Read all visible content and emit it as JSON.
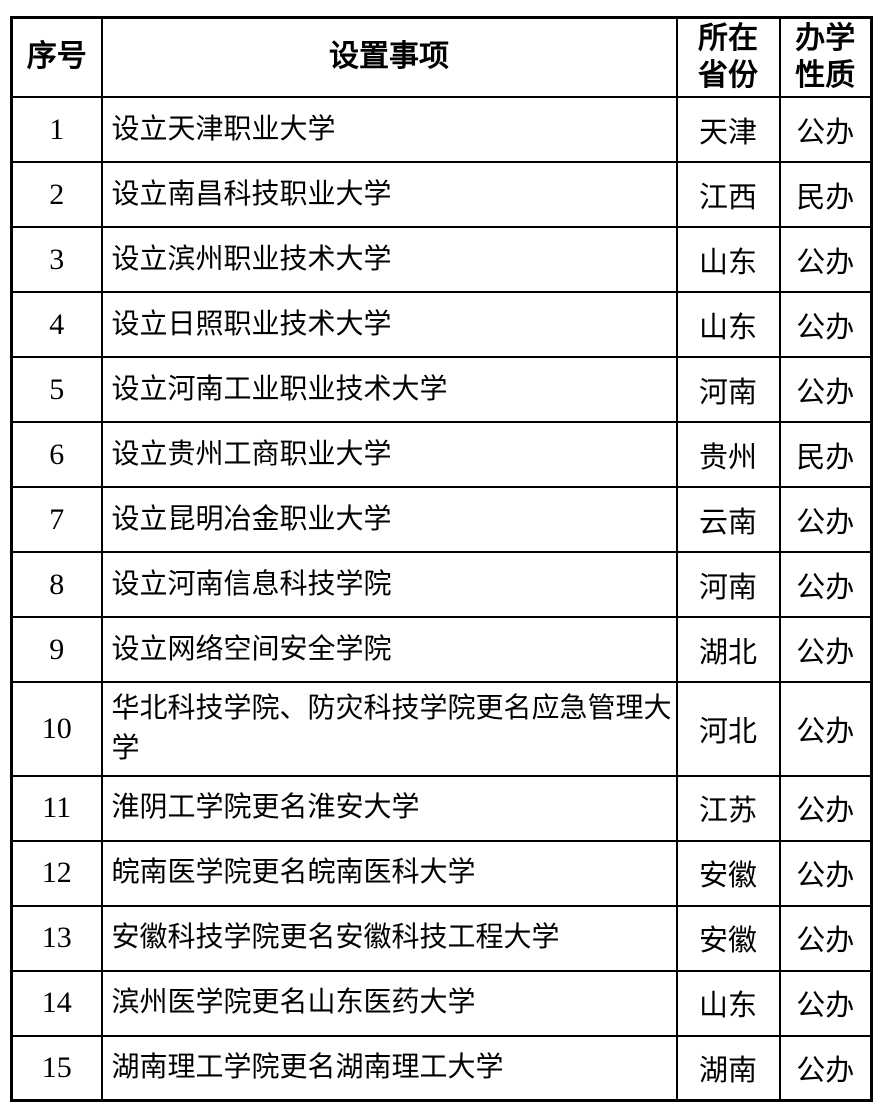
{
  "page": {
    "background": "#ffffff",
    "border_color": "#000000",
    "text_color": "#000000"
  },
  "table": {
    "headers": {
      "no": "序号",
      "item": "设置事项",
      "province": "所在省份",
      "nature": "办学性质"
    },
    "rows": [
      {
        "no": "1",
        "item": "设立天津职业大学",
        "province": "天津",
        "nature": "公办"
      },
      {
        "no": "2",
        "item": "设立南昌科技职业大学",
        "province": "江西",
        "nature": "民办"
      },
      {
        "no": "3",
        "item": "设立滨州职业技术大学",
        "province": "山东",
        "nature": "公办"
      },
      {
        "no": "4",
        "item": "设立日照职业技术大学",
        "province": "山东",
        "nature": "公办"
      },
      {
        "no": "5",
        "item": "设立河南工业职业技术大学",
        "province": "河南",
        "nature": "公办"
      },
      {
        "no": "6",
        "item": "设立贵州工商职业大学",
        "province": "贵州",
        "nature": "民办"
      },
      {
        "no": "7",
        "item": "设立昆明冶金职业大学",
        "province": "云南",
        "nature": "公办"
      },
      {
        "no": "8",
        "item": "设立河南信息科技学院",
        "province": "河南",
        "nature": "公办"
      },
      {
        "no": "9",
        "item": "设立网络空间安全学院",
        "province": "湖北",
        "nature": "公办"
      },
      {
        "no": "10",
        "item": "华北科技学院、防灾科技学院更名应急管理大学",
        "province": "河北",
        "nature": "公办"
      },
      {
        "no": "11",
        "item": "淮阴工学院更名淮安大学",
        "province": "江苏",
        "nature": "公办"
      },
      {
        "no": "12",
        "item": "皖南医学院更名皖南医科大学",
        "province": "安徽",
        "nature": "公办"
      },
      {
        "no": "13",
        "item": "安徽科技学院更名安徽科技工程大学",
        "province": "安徽",
        "nature": "公办"
      },
      {
        "no": "14",
        "item": "滨州医学院更名山东医药大学",
        "province": "山东",
        "nature": "公办"
      },
      {
        "no": "15",
        "item": "湖南理工学院更名湖南理工大学",
        "province": "湖南",
        "nature": "公办"
      }
    ]
  }
}
